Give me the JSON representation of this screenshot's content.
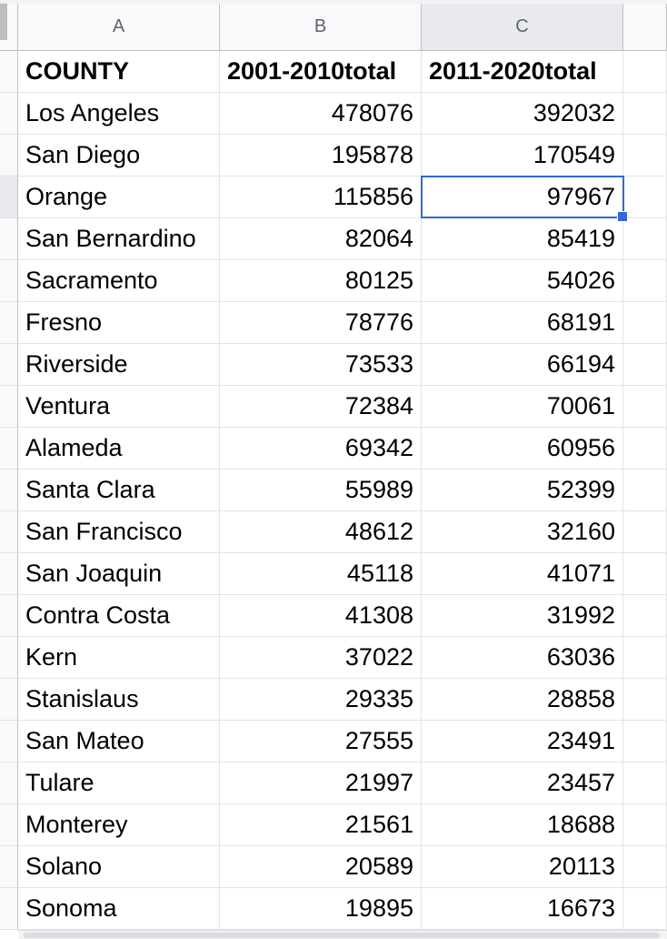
{
  "spreadsheet": {
    "column_headers": [
      "A",
      "B",
      "C"
    ],
    "selected_column": "C",
    "selected_cell": "C3",
    "header_row": [
      "COUNTY",
      "2001-2010total",
      "2011-2020total"
    ],
    "rows": [
      [
        "Los Angeles",
        "478076",
        "392032"
      ],
      [
        "San Diego",
        "195878",
        "170549"
      ],
      [
        "Orange",
        "115856",
        "97967"
      ],
      [
        "San Bernardino",
        "82064",
        "85419"
      ],
      [
        "Sacramento",
        "80125",
        "54026"
      ],
      [
        "Fresno",
        "78776",
        "68191"
      ],
      [
        "Riverside",
        "73533",
        "66194"
      ],
      [
        "Ventura",
        "72384",
        "70061"
      ],
      [
        "Alameda",
        "69342",
        "60956"
      ],
      [
        "Santa Clara",
        "55989",
        "52399"
      ],
      [
        "San Francisco",
        "48612",
        "32160"
      ],
      [
        "San Joaquin",
        "45118",
        "41071"
      ],
      [
        "Contra Costa",
        "41308",
        "31992"
      ],
      [
        "Kern",
        "37022",
        "63036"
      ],
      [
        "Stanislaus",
        "29335",
        "28858"
      ],
      [
        "San Mateo",
        "27555",
        "23491"
      ],
      [
        "Tulare",
        "21997",
        "23457"
      ],
      [
        "Monterey",
        "21561",
        "18688"
      ],
      [
        "Solano",
        "20589",
        "20113"
      ],
      [
        "Sonoma",
        "19895",
        "16673"
      ]
    ]
  },
  "colors": {
    "selection": "#3367d6",
    "header_bg": "#f8f9fa",
    "selected_header_bg": "#e8eaed",
    "gridline": "#e2e3e3"
  }
}
